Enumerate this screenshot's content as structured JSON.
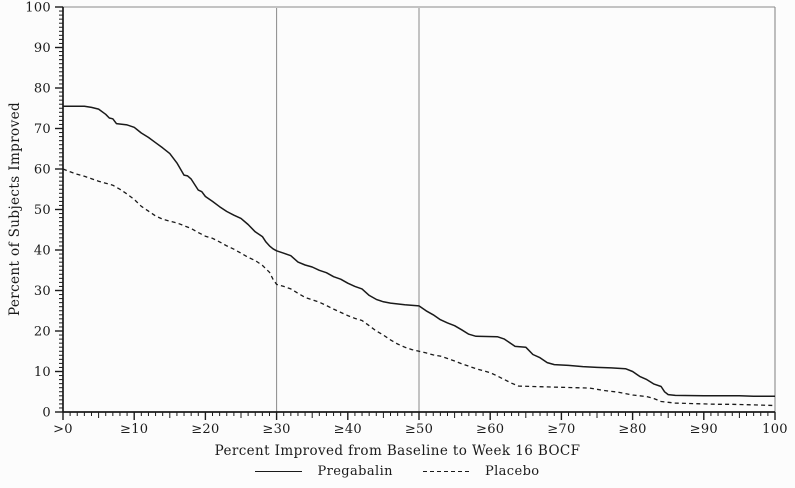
{
  "page": {
    "background": "#fcfcfc"
  },
  "chart_data": {
    "type": "line",
    "title": "",
    "xlabel": "Percent Improved from Baseline to Week 16 BOCF",
    "ylabel": "Percent of Subjects Improved",
    "xlim": [
      0,
      100
    ],
    "ylim": [
      0,
      100
    ],
    "grid": false,
    "legend_position": "bottom",
    "axis_color": "#1a1a1a",
    "frame_color": "#8a8a8a",
    "reference_line_color": "#8a8a8a",
    "reference_lines_x": [
      30,
      50
    ],
    "x_ticks": [
      0,
      10,
      20,
      30,
      40,
      50,
      60,
      70,
      80,
      90,
      100
    ],
    "x_tick_labels": [
      ">0",
      "≥10",
      "≥20",
      "≥30",
      "≥40",
      "≥50",
      "≥60",
      "≥70",
      "≥80",
      "≥90",
      "100"
    ],
    "y_ticks": [
      0,
      10,
      20,
      30,
      40,
      50,
      60,
      70,
      80,
      90,
      100
    ],
    "y_tick_labels": [
      "0",
      "10",
      "20",
      "30",
      "40",
      "50",
      "60",
      "70",
      "80",
      "90",
      "100"
    ],
    "minor_tick_step": 1,
    "series": [
      {
        "name": "Pregabalin",
        "line_style": "solid",
        "color": "#1a1a1a",
        "points": [
          [
            0,
            75.5
          ],
          [
            3,
            75.5
          ],
          [
            4,
            75.2
          ],
          [
            5,
            74.8
          ],
          [
            6,
            73.5
          ],
          [
            6.5,
            72.6
          ],
          [
            7,
            72.4
          ],
          [
            7.5,
            71.2
          ],
          [
            9,
            70.9
          ],
          [
            10,
            70.3
          ],
          [
            11,
            68.9
          ],
          [
            12,
            67.8
          ],
          [
            13,
            66.5
          ],
          [
            14,
            65.2
          ],
          [
            15,
            63.8
          ],
          [
            16,
            61.5
          ],
          [
            17,
            58.5
          ],
          [
            17.5,
            58.3
          ],
          [
            18,
            57.5
          ],
          [
            19,
            54.8
          ],
          [
            19.5,
            54.4
          ],
          [
            20,
            53.2
          ],
          [
            21,
            52.0
          ],
          [
            22,
            50.7
          ],
          [
            23,
            49.5
          ],
          [
            24,
            48.6
          ],
          [
            25,
            47.8
          ],
          [
            26,
            46.3
          ],
          [
            27,
            44.5
          ],
          [
            28,
            43.3
          ],
          [
            28.5,
            42.0
          ],
          [
            29,
            41.0
          ],
          [
            29.5,
            40.3
          ],
          [
            30,
            39.8
          ],
          [
            31,
            39.2
          ],
          [
            32,
            38.6
          ],
          [
            33,
            37.0
          ],
          [
            34,
            36.3
          ],
          [
            35,
            35.8
          ],
          [
            36,
            35.0
          ],
          [
            37,
            34.4
          ],
          [
            38,
            33.4
          ],
          [
            39,
            32.8
          ],
          [
            40,
            31.8
          ],
          [
            41,
            31.0
          ],
          [
            42,
            30.4
          ],
          [
            43,
            28.8
          ],
          [
            44,
            27.8
          ],
          [
            45,
            27.2
          ],
          [
            46,
            26.9
          ],
          [
            48,
            26.5
          ],
          [
            50,
            26.2
          ],
          [
            51,
            25.0
          ],
          [
            52,
            24.0
          ],
          [
            53,
            22.8
          ],
          [
            54,
            22.0
          ],
          [
            55,
            21.3
          ],
          [
            56,
            20.3
          ],
          [
            57,
            19.2
          ],
          [
            58,
            18.7
          ],
          [
            61,
            18.6
          ],
          [
            62,
            18.0
          ],
          [
            63,
            16.8
          ],
          [
            63.5,
            16.2
          ],
          [
            65,
            16.0
          ],
          [
            66,
            14.2
          ],
          [
            67,
            13.4
          ],
          [
            68,
            12.2
          ],
          [
            69,
            11.7
          ],
          [
            71,
            11.5
          ],
          [
            73,
            11.2
          ],
          [
            75,
            11.0
          ],
          [
            77,
            10.9
          ],
          [
            79,
            10.7
          ],
          [
            80,
            10.0
          ],
          [
            81,
            8.8
          ],
          [
            82,
            8.0
          ],
          [
            83,
            6.9
          ],
          [
            84,
            6.3
          ],
          [
            84.5,
            5.0
          ],
          [
            85,
            4.3
          ],
          [
            86,
            4.1
          ],
          [
            90,
            4.0
          ],
          [
            95,
            4.0
          ],
          [
            97,
            3.9
          ],
          [
            100,
            3.9
          ]
        ]
      },
      {
        "name": "Placebo",
        "line_style": "dashed",
        "color": "#1a1a1a",
        "points": [
          [
            0,
            60.0
          ],
          [
            1,
            59.3
          ],
          [
            2,
            58.7
          ],
          [
            3,
            58.2
          ],
          [
            4,
            57.6
          ],
          [
            5,
            57.0
          ],
          [
            6,
            56.5
          ],
          [
            7,
            56.0
          ],
          [
            8,
            55.0
          ],
          [
            9,
            53.8
          ],
          [
            10,
            52.5
          ],
          [
            11,
            50.8
          ],
          [
            12,
            49.6
          ],
          [
            13,
            48.4
          ],
          [
            14,
            47.6
          ],
          [
            15,
            47.1
          ],
          [
            16,
            46.7
          ],
          [
            17,
            46.0
          ],
          [
            18,
            45.3
          ],
          [
            19,
            44.3
          ],
          [
            20,
            43.4
          ],
          [
            21,
            42.9
          ],
          [
            22,
            42.0
          ],
          [
            23,
            41.0
          ],
          [
            24,
            40.2
          ],
          [
            25,
            39.2
          ],
          [
            26,
            38.2
          ],
          [
            27,
            37.4
          ],
          [
            28,
            36.2
          ],
          [
            29,
            34.5
          ],
          [
            29.5,
            32.8
          ],
          [
            30,
            31.5
          ],
          [
            31,
            31.0
          ],
          [
            32,
            30.4
          ],
          [
            33,
            29.3
          ],
          [
            34,
            28.3
          ],
          [
            35,
            27.7
          ],
          [
            36,
            27.1
          ],
          [
            37,
            26.3
          ],
          [
            38,
            25.4
          ],
          [
            39,
            24.6
          ],
          [
            40,
            23.8
          ],
          [
            41,
            23.1
          ],
          [
            42,
            22.6
          ],
          [
            43,
            21.3
          ],
          [
            44,
            20.0
          ],
          [
            45,
            19.0
          ],
          [
            46,
            17.8
          ],
          [
            47,
            16.8
          ],
          [
            48,
            16.0
          ],
          [
            49,
            15.4
          ],
          [
            50,
            15.0
          ],
          [
            51,
            14.6
          ],
          [
            52,
            14.1
          ],
          [
            53,
            13.8
          ],
          [
            54,
            13.2
          ],
          [
            55,
            12.6
          ],
          [
            56,
            11.9
          ],
          [
            57,
            11.3
          ],
          [
            58,
            10.7
          ],
          [
            59,
            10.2
          ],
          [
            60,
            9.7
          ],
          [
            61,
            8.9
          ],
          [
            62,
            8.0
          ],
          [
            63,
            7.1
          ],
          [
            64,
            6.4
          ],
          [
            66,
            6.3
          ],
          [
            68,
            6.2
          ],
          [
            70,
            6.1
          ],
          [
            72,
            6.0
          ],
          [
            74,
            5.9
          ],
          [
            75,
            5.6
          ],
          [
            76,
            5.3
          ],
          [
            78,
            4.9
          ],
          [
            80,
            4.2
          ],
          [
            82,
            3.8
          ],
          [
            83,
            3.3
          ],
          [
            84,
            2.6
          ],
          [
            85,
            2.4
          ],
          [
            86,
            2.2
          ],
          [
            88,
            2.1
          ],
          [
            90,
            2.0
          ],
          [
            92,
            1.9
          ],
          [
            94,
            1.9
          ],
          [
            96,
            1.8
          ],
          [
            98,
            1.7
          ],
          [
            100,
            1.6
          ]
        ]
      }
    ]
  }
}
